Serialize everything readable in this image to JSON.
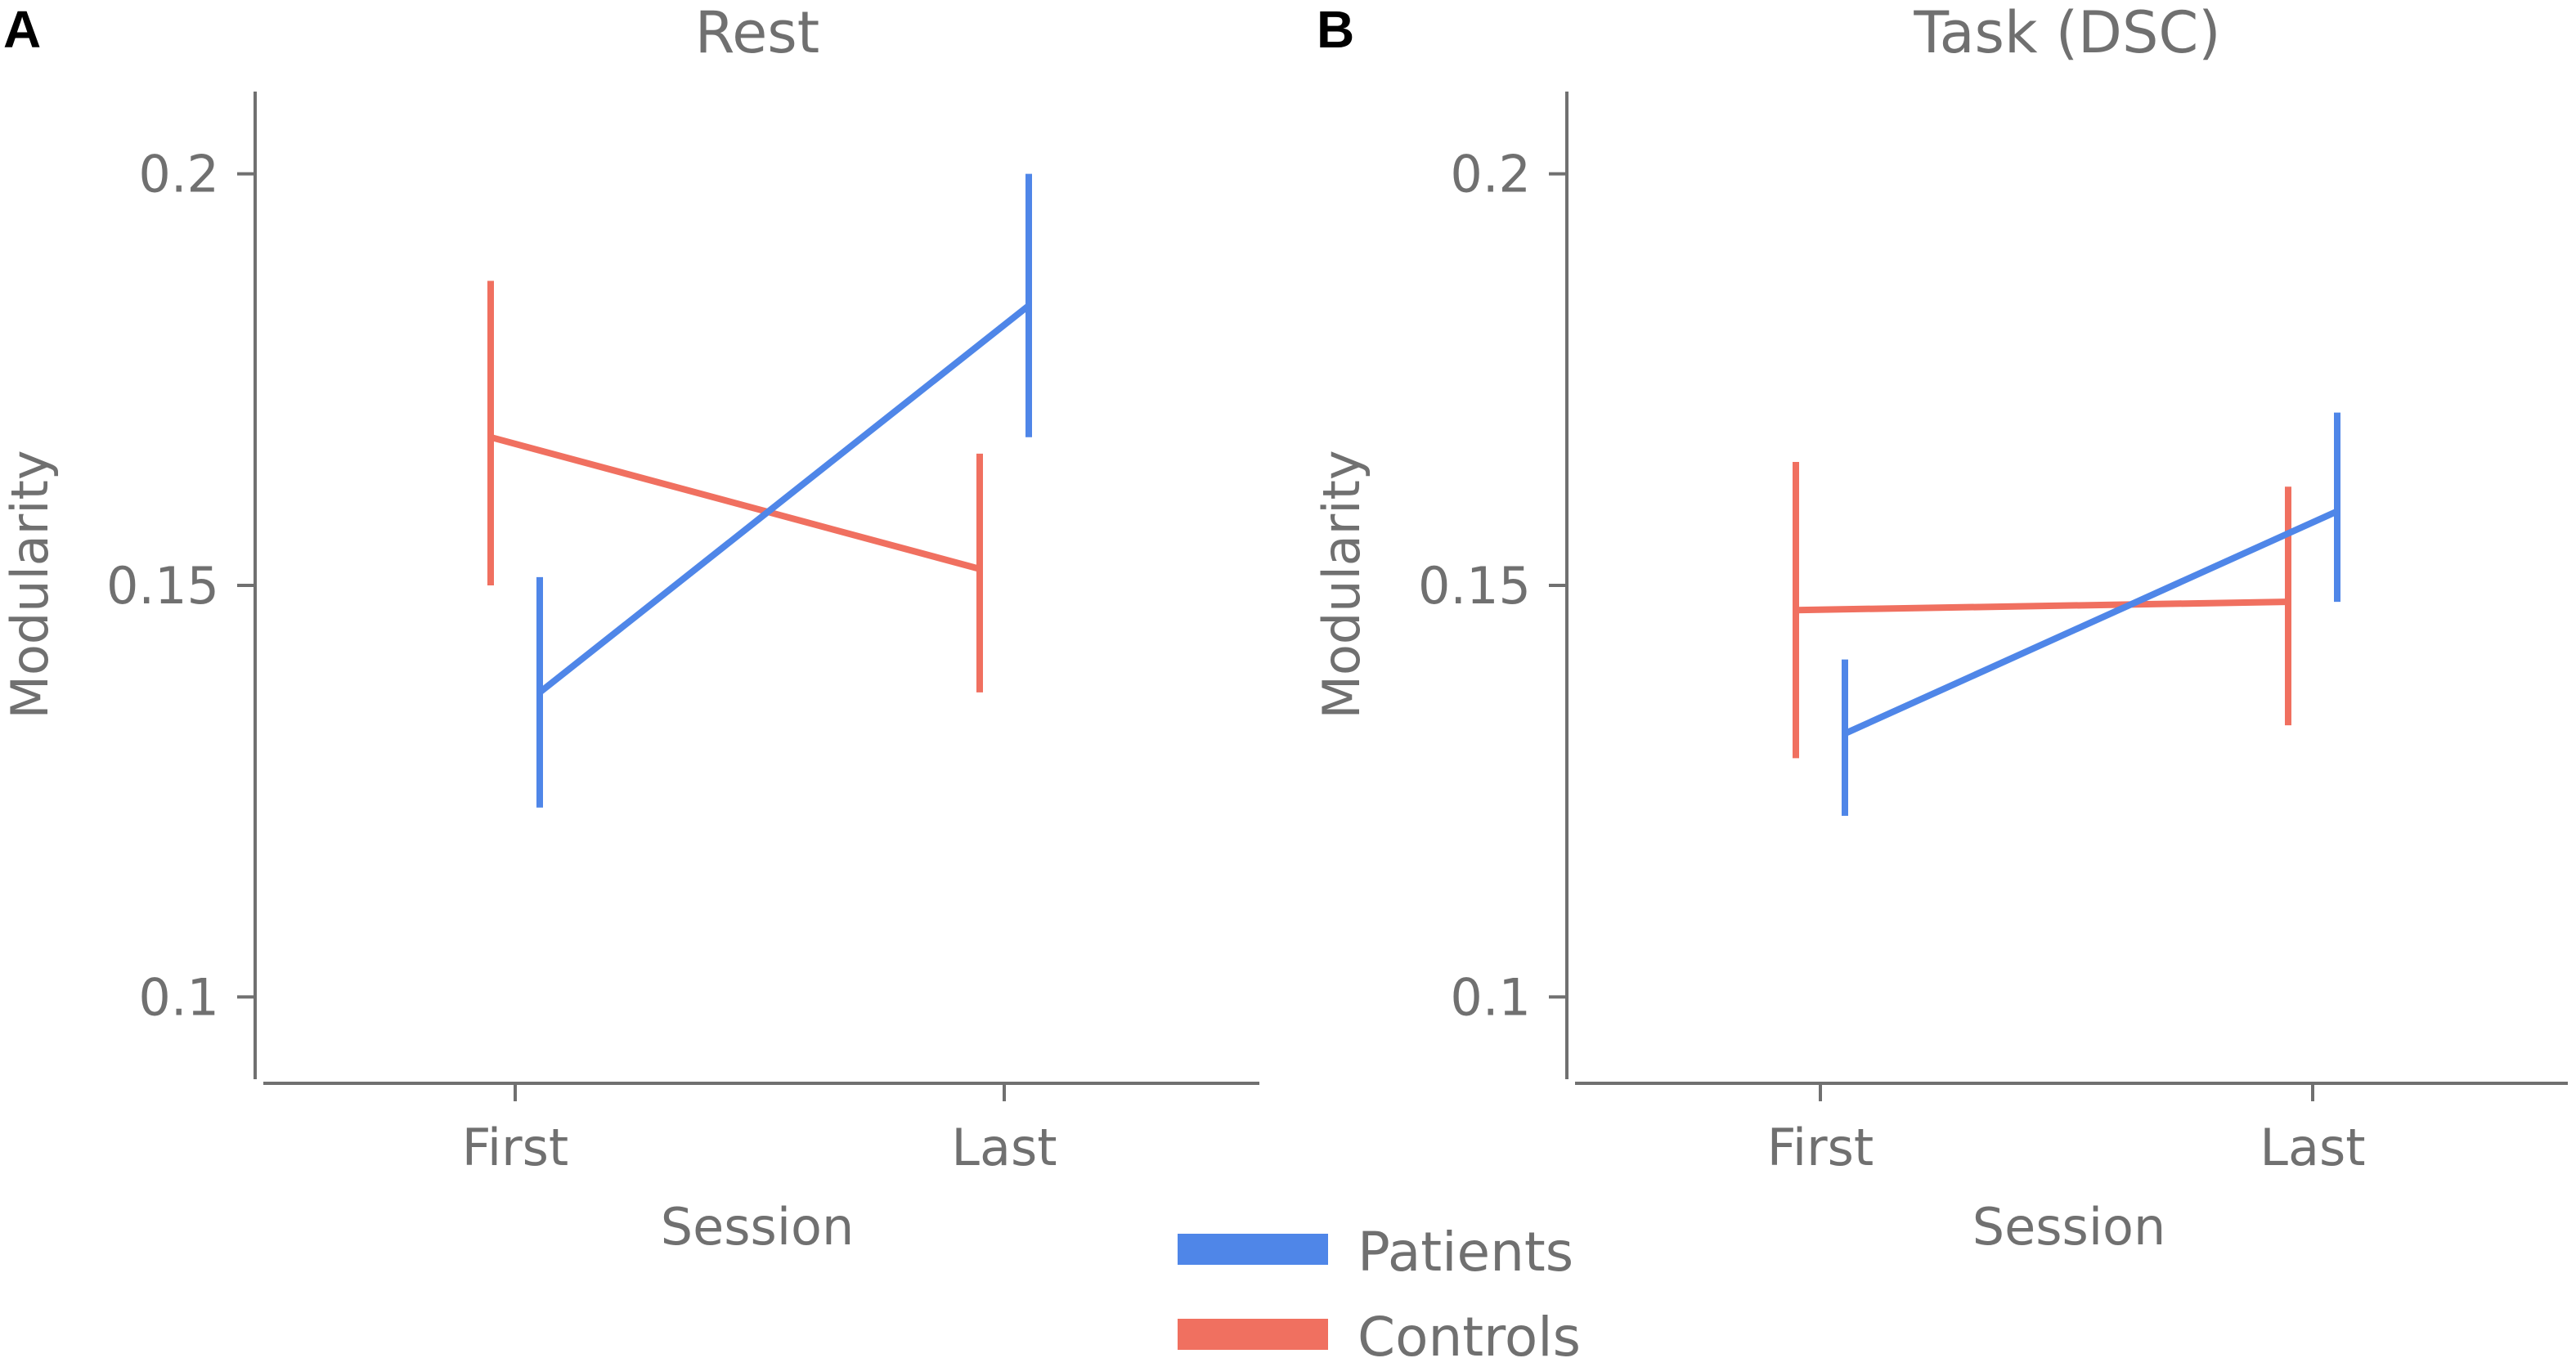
{
  "colors": {
    "patients": "#4F86E8",
    "controls": "#F07060",
    "axis": "#707070"
  },
  "legend": [
    {
      "name": "Patients",
      "color": "#4F86E8"
    },
    {
      "name": "Controls",
      "color": "#F07060"
    }
  ],
  "legend_placement": "bottom-center",
  "chart_data": [
    {
      "type": "line",
      "panel": "A",
      "title": "Rest",
      "xlabel": "Session",
      "ylabel": "Modularity",
      "categories": [
        "First",
        "Last"
      ],
      "ylim": [
        0.09,
        0.21
      ],
      "yticks": [
        0.1,
        0.15,
        0.2
      ],
      "ytick_labels": [
        "0.1",
        "0.15",
        "0.2"
      ],
      "series": [
        {
          "name": "Patients",
          "color": "#4F86E8",
          "values": [
            0.137,
            0.184
          ],
          "err_low": [
            0.123,
            0.168
          ],
          "err_high": [
            0.151,
            0.2
          ]
        },
        {
          "name": "Controls",
          "color": "#F07060",
          "values": [
            0.168,
            0.152
          ],
          "err_low": [
            0.15,
            0.137
          ],
          "err_high": [
            0.187,
            0.166
          ]
        }
      ]
    },
    {
      "type": "line",
      "panel": "B",
      "title": "Task (DSC)",
      "xlabel": "Session",
      "ylabel": "Modularity",
      "categories": [
        "First",
        "Last"
      ],
      "ylim": [
        0.09,
        0.21
      ],
      "yticks": [
        0.1,
        0.15,
        0.2
      ],
      "ytick_labels": [
        "0.1",
        "0.15",
        "0.2"
      ],
      "series": [
        {
          "name": "Patients",
          "color": "#4F86E8",
          "values": [
            0.132,
            0.159
          ],
          "err_low": [
            0.122,
            0.148
          ],
          "err_high": [
            0.141,
            0.171
          ]
        },
        {
          "name": "Controls",
          "color": "#F07060",
          "values": [
            0.147,
            0.148
          ],
          "err_low": [
            0.129,
            0.133
          ],
          "err_high": [
            0.165,
            0.162
          ]
        }
      ]
    }
  ]
}
